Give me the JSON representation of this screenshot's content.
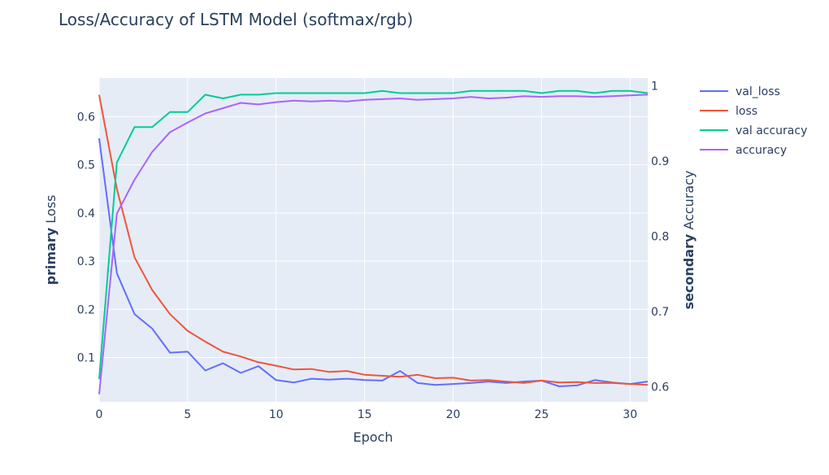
{
  "chart_data": {
    "type": "line",
    "title": "Loss/Accuracy of LSTM Model (softmax/rgb)",
    "xlabel": "Epoch",
    "ylabel_primary_bold": "primary",
    "ylabel_primary_rest": "Loss",
    "ylabel_secondary_bold": "secondary",
    "ylabel_secondary_rest": "Accuracy",
    "xlim": [
      0,
      31
    ],
    "ylim_primary": [
      0.008,
      0.68
    ],
    "ylim_secondary": [
      0.58,
      1.01
    ],
    "x_ticks": [
      0,
      5,
      10,
      15,
      20,
      25,
      30
    ],
    "y_ticks_primary": [
      0.1,
      0.2,
      0.3,
      0.4,
      0.5,
      0.6
    ],
    "y_ticks_secondary": [
      0.6,
      0.7,
      0.8,
      0.9,
      1
    ],
    "grid": true,
    "legend_position": "top-right",
    "x": [
      0,
      1,
      2,
      3,
      4,
      5,
      6,
      7,
      8,
      9,
      10,
      11,
      12,
      13,
      14,
      15,
      16,
      17,
      18,
      19,
      20,
      21,
      22,
      23,
      24,
      25,
      26,
      27,
      28,
      29,
      30,
      31
    ],
    "series": [
      {
        "name": "val_loss",
        "axis": "primary",
        "color": "#636efa",
        "values": [
          0.555,
          0.275,
          0.19,
          0.16,
          0.11,
          0.112,
          0.073,
          0.088,
          0.068,
          0.082,
          0.053,
          0.048,
          0.056,
          0.054,
          0.056,
          0.053,
          0.052,
          0.072,
          0.047,
          0.043,
          0.045,
          0.047,
          0.05,
          0.047,
          0.05,
          0.052,
          0.04,
          0.042,
          0.053,
          0.048,
          0.045,
          0.05
        ]
      },
      {
        "name": "loss",
        "axis": "primary",
        "color": "#ef553b",
        "values": [
          0.645,
          0.45,
          0.308,
          0.24,
          0.19,
          0.155,
          0.133,
          0.112,
          0.102,
          0.09,
          0.083,
          0.075,
          0.076,
          0.07,
          0.072,
          0.064,
          0.062,
          0.06,
          0.064,
          0.057,
          0.058,
          0.052,
          0.053,
          0.05,
          0.047,
          0.052,
          0.048,
          0.049,
          0.047,
          0.047,
          0.045,
          0.043
        ]
      },
      {
        "name": "val accuracy",
        "axis": "secondary",
        "color": "#00cc96",
        "values": [
          0.61,
          0.898,
          0.945,
          0.945,
          0.965,
          0.965,
          0.988,
          0.983,
          0.988,
          0.988,
          0.99,
          0.99,
          0.99,
          0.99,
          0.99,
          0.99,
          0.993,
          0.99,
          0.99,
          0.99,
          0.99,
          0.993,
          0.993,
          0.993,
          0.993,
          0.99,
          0.993,
          0.993,
          0.99,
          0.993,
          0.993,
          0.99
        ]
      },
      {
        "name": "accuracy",
        "axis": "secondary",
        "color": "#ab63fa",
        "values": [
          0.59,
          0.83,
          0.875,
          0.912,
          0.938,
          0.951,
          0.963,
          0.97,
          0.977,
          0.975,
          0.978,
          0.98,
          0.979,
          0.98,
          0.979,
          0.981,
          0.982,
          0.983,
          0.981,
          0.982,
          0.983,
          0.985,
          0.983,
          0.984,
          0.986,
          0.985,
          0.986,
          0.986,
          0.985,
          0.986,
          0.987,
          0.988
        ]
      }
    ]
  }
}
